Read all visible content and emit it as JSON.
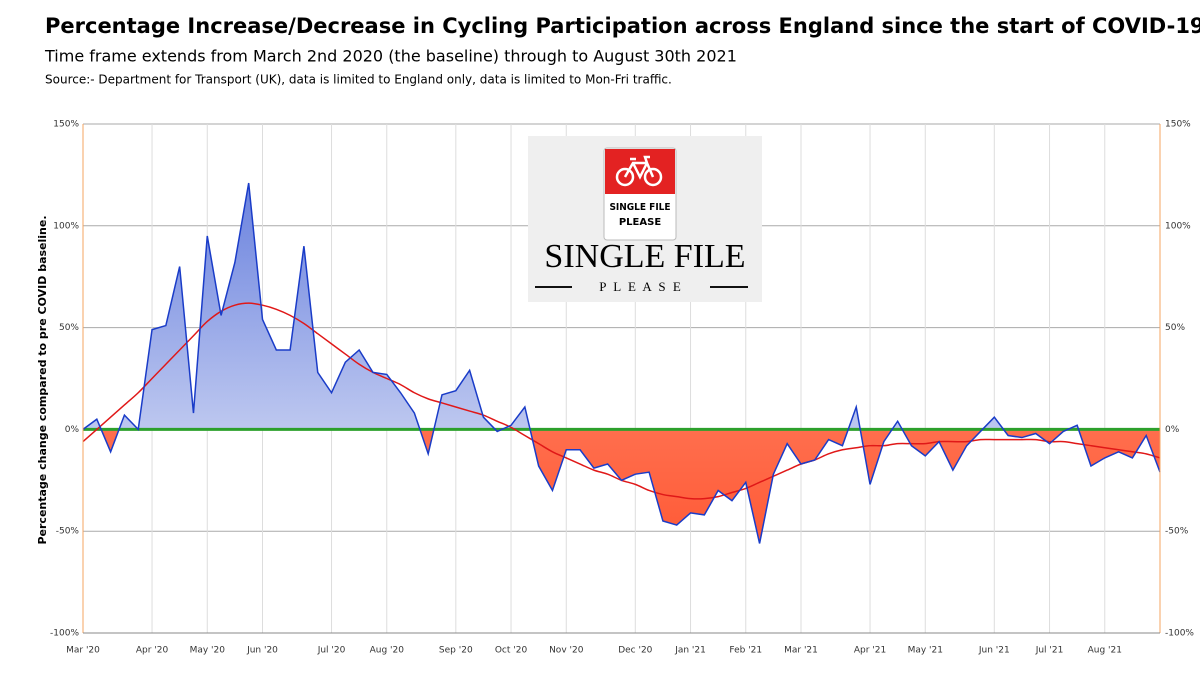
{
  "chart_data": {
    "type": "area",
    "title": "Percentage Increase/Decrease in Cycling Participation across England since the start of COVID-19.",
    "subtitle": "Time frame extends from March 2nd 2020 (the baseline) through to August 30th 2021",
    "source": "Source:-  Department for Transport (UK),  data is limited to England only,  data is limited to Mon-Fri traffic.",
    "ylabel": "Percentage change compared to pre COVID baseline.",
    "categories": [
      "Mar '20",
      null,
      null,
      null,
      null,
      "Apr '20",
      null,
      null,
      null,
      "May '20",
      null,
      null,
      null,
      "Jun '20",
      null,
      null,
      null,
      null,
      "Jul '20",
      null,
      null,
      null,
      "Aug '20",
      null,
      null,
      null,
      null,
      "Sep '20",
      null,
      null,
      null,
      "Oct '20",
      null,
      null,
      null,
      "Nov '20",
      null,
      null,
      null,
      null,
      "Dec '20",
      null,
      null,
      null,
      "Jan '21",
      null,
      null,
      null,
      "Feb '21",
      null,
      null,
      null,
      "Mar '21",
      null,
      null,
      null,
      null,
      "Apr '21",
      null,
      null,
      null,
      "May '21",
      null,
      null,
      null,
      null,
      "Jun '21",
      null,
      null,
      null,
      "Jul '21",
      null,
      null,
      null,
      "Aug '21",
      null,
      null,
      null,
      null
    ],
    "series": [
      {
        "color": "#1a3cc8",
        "positive_fill": "#6a82de",
        "negative_fill": "#ff5a36",
        "values": [
          0,
          5,
          -11,
          7,
          0,
          49,
          51,
          80,
          8,
          95,
          56,
          82,
          121,
          54,
          39,
          39,
          90,
          28,
          18,
          33,
          39,
          28,
          27,
          18,
          8,
          -12,
          17,
          19,
          29,
          6,
          -1,
          2,
          11,
          -18,
          -30,
          -10,
          -10,
          -19,
          -17,
          -25,
          -22,
          -21,
          -45,
          -47,
          -41,
          -42,
          -30,
          -35,
          -26,
          -56,
          -22,
          -7,
          -17,
          -15,
          -5,
          -8,
          11,
          -27,
          -6,
          4,
          -8,
          -13,
          -6,
          -20,
          -8,
          -1,
          6,
          -3,
          -4,
          -2,
          -7,
          -1,
          2,
          -18,
          -14,
          -11,
          -14,
          -3,
          -21
        ]
      },
      {
        "color": "#e01818",
        "smooth": true,
        "values": [
          -6,
          0,
          6,
          12,
          18,
          25,
          32,
          39,
          46,
          53,
          58,
          61,
          62,
          61,
          59,
          56,
          52,
          47,
          42,
          37,
          32,
          28,
          25,
          22,
          18,
          15,
          13,
          11,
          9,
          7,
          4,
          1,
          -3,
          -7,
          -11,
          -14,
          -17,
          -20,
          -22,
          -25,
          -27,
          -30,
          -32,
          -33,
          -34,
          -34,
          -33,
          -31,
          -29,
          -26,
          -23,
          -20,
          -17,
          -15,
          -12,
          -10,
          -9,
          -8,
          -8,
          -7,
          -7,
          -7,
          -6,
          -6,
          -6,
          -5,
          -5,
          -5,
          -5,
          -5,
          -6,
          -6,
          -7,
          -8,
          -9,
          -10,
          -11,
          -12,
          -14
        ]
      }
    ],
    "zero_line_color": "#2ca02c",
    "axis_color": "#f4a460",
    "grid": true,
    "ylim": [
      -100,
      150
    ],
    "yticks": [
      {
        "value": -100,
        "label": "-100%"
      },
      {
        "value": -50,
        "label": "-50%"
      },
      {
        "value": 0,
        "label": "0%"
      },
      {
        "value": 50,
        "label": "50%"
      },
      {
        "value": 100,
        "label": "100%"
      },
      {
        "value": 150,
        "label": "150%"
      }
    ],
    "y2lim": [
      -100,
      150
    ],
    "y2ticks": [
      {
        "value": -100,
        "label": "-100%"
      },
      {
        "value": -50,
        "label": "-50%"
      },
      {
        "value": 0,
        "label": "0%"
      },
      {
        "value": 50,
        "label": "50%"
      },
      {
        "value": 100,
        "label": "100%"
      },
      {
        "value": 150,
        "label": "150%"
      }
    ]
  },
  "logo": {
    "sign_line1": "SINGLE FILE",
    "sign_line2": "PLEASE",
    "name": "SINGLE FILE",
    "tagline": "P L E A S E"
  }
}
